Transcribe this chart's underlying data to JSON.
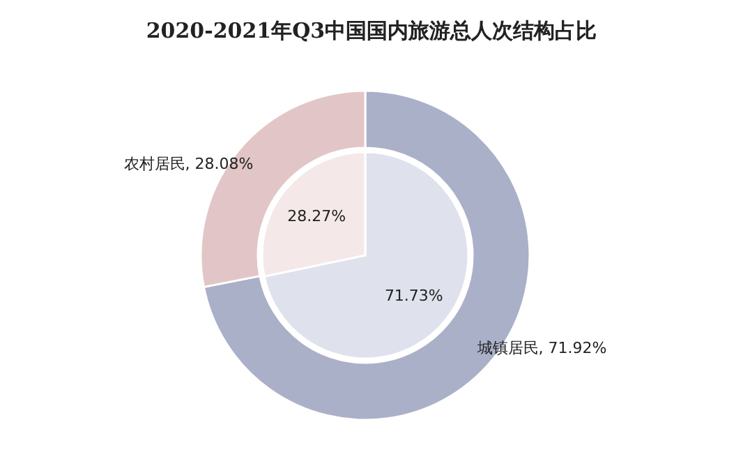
{
  "chart_data": [
    {
      "type": "donut",
      "title": "2020-2021年Q3中国国内旅游总人次结构占比",
      "categories": [
        "城镇居民",
        "农村居民"
      ],
      "values": [
        71.92,
        28.08
      ],
      "colors": [
        "#abb0c9",
        "#e2c6c7"
      ],
      "value_labels": [
        "71.92%",
        "28.08%"
      ]
    },
    {
      "type": "pie",
      "categories": [
        null,
        null
      ],
      "values": [
        71.73,
        28.27
      ],
      "colors": [
        "#dfe2ec",
        "#f4e8e8"
      ],
      "value_labels": [
        "71.73%",
        "28.27%"
      ]
    }
  ]
}
